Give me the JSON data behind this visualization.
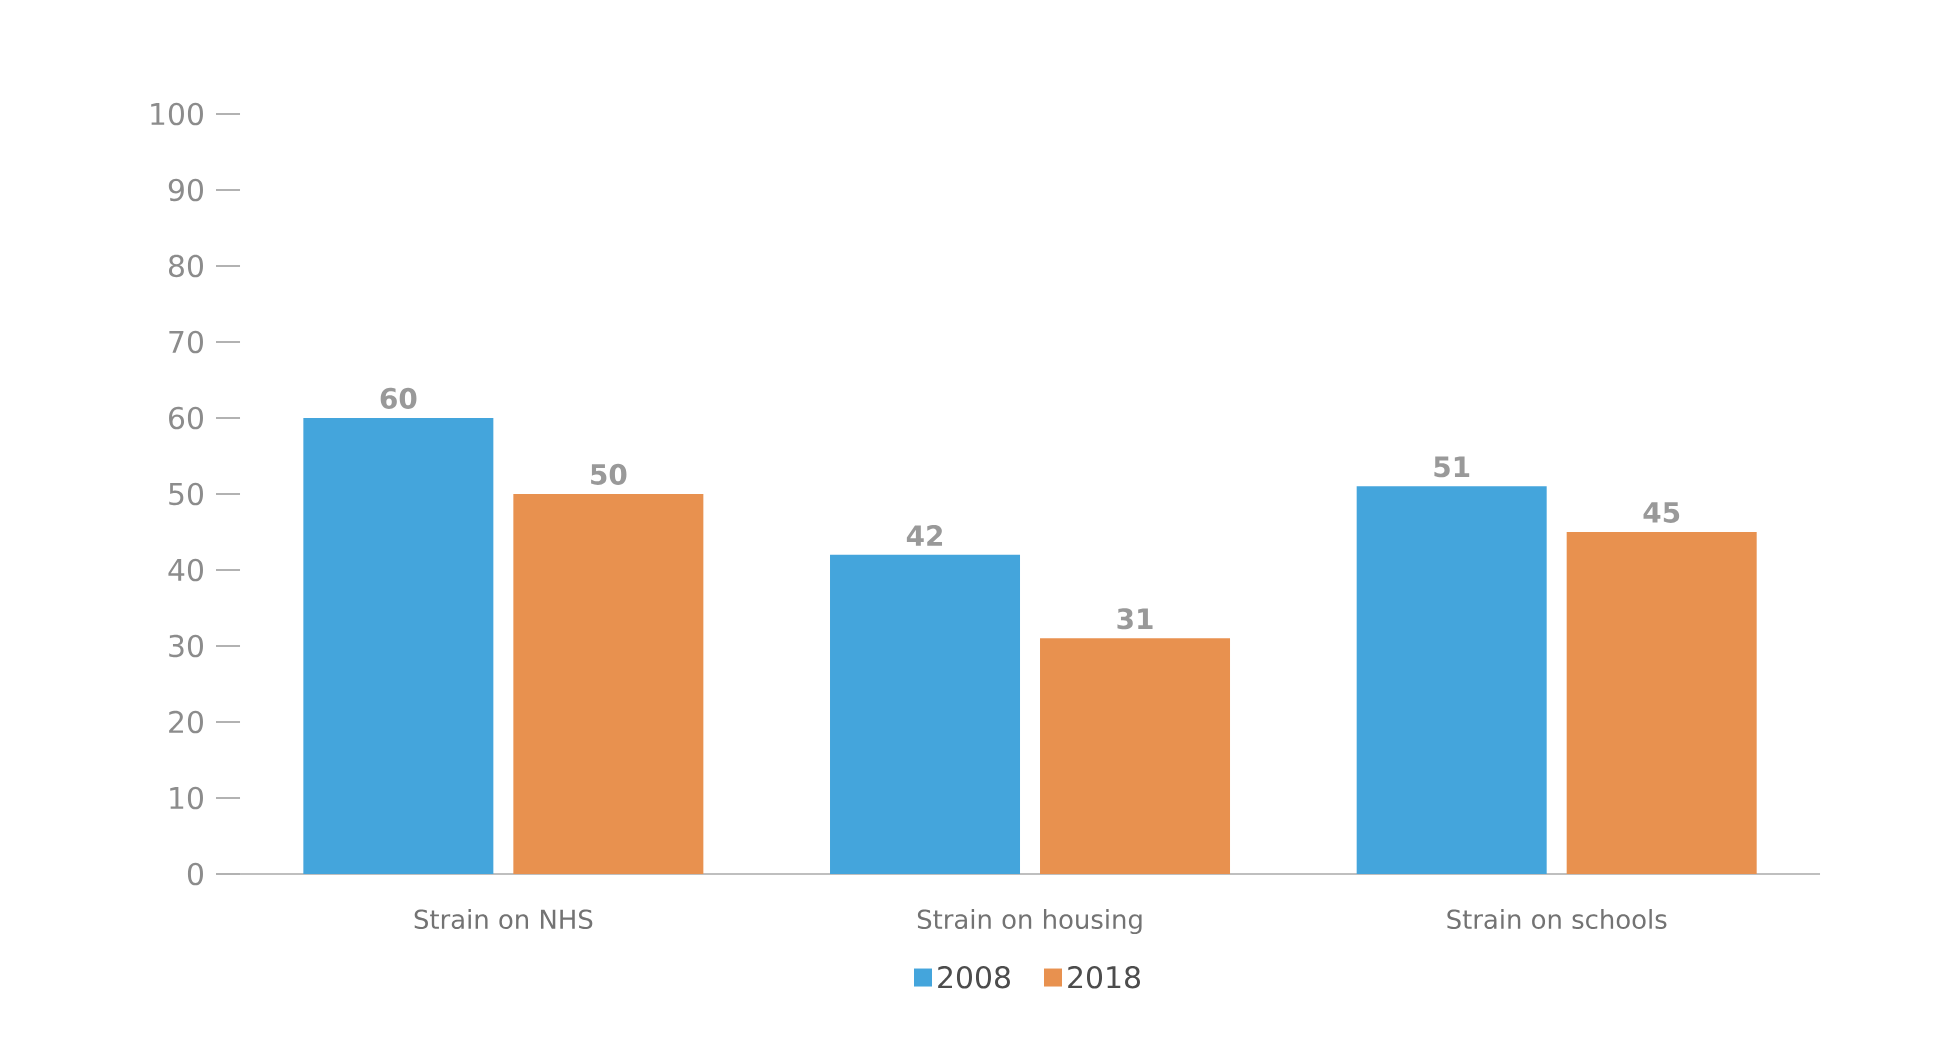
{
  "chart_data": {
    "type": "bar",
    "categories": [
      "Strain on NHS",
      "Strain on housing",
      "Strain on schools"
    ],
    "series": [
      {
        "name": "2008",
        "color": "#44a5dc",
        "values": [
          60,
          42,
          51
        ]
      },
      {
        "name": "2018",
        "color": "#e8914f",
        "values": [
          50,
          31,
          45
        ]
      }
    ],
    "ylim": [
      0,
      100
    ],
    "yticks": [
      0,
      10,
      20,
      30,
      40,
      50,
      60,
      70,
      80,
      90,
      100
    ],
    "data_labels": true,
    "legend": "bottom"
  }
}
